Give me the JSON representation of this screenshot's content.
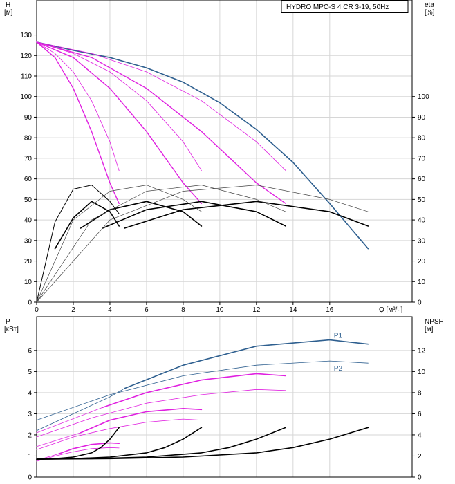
{
  "chart_data": [
    {
      "type": "line",
      "title": "HYDRO MPC-S 4 CR 3-19, 50Hz",
      "xlabel": "Q [м³/ч]",
      "ylabel": "H",
      "ylabel_unit": "[м]",
      "y2label": "eta",
      "y2label_unit": "[%]",
      "xlim": [
        0,
        20.5
      ],
      "ylim": [
        0,
        147
      ],
      "y2lim": [
        0,
        147
      ],
      "x_ticks": [
        "0",
        "2",
        "4",
        "6",
        "8",
        "10",
        "12",
        "14",
        "16"
      ],
      "y_ticks": [
        "0",
        "10",
        "20",
        "30",
        "40",
        "50",
        "60",
        "70",
        "80",
        "90",
        "100",
        "110",
        "120",
        "130"
      ],
      "y2_ticks": [
        "0",
        "10",
        "20",
        "30",
        "40",
        "50",
        "60",
        "70",
        "80",
        "90",
        "100"
      ],
      "grid": true,
      "series": [
        {
          "group": "H",
          "color": "#2e5f8f",
          "width": 1.6,
          "x": [
            0,
            2,
            4,
            6,
            8,
            10,
            12,
            14,
            16,
            18.1
          ],
          "y": [
            126.5,
            122.5,
            119,
            114,
            107,
            97,
            84,
            68,
            48,
            26
          ]
        },
        {
          "group": "H",
          "color": "#e020e0",
          "width": 1.4,
          "x": [
            0,
            1,
            2,
            3,
            4,
            4.5
          ],
          "y": [
            126.5,
            119,
            104,
            83,
            58,
            48
          ]
        },
        {
          "group": "H",
          "color": "#e020e0",
          "width": 1.4,
          "x": [
            0,
            2,
            4,
            6,
            8,
            9
          ],
          "y": [
            126.5,
            119,
            104,
            83,
            58,
            48
          ]
        },
        {
          "group": "H",
          "color": "#e020e0",
          "width": 1.4,
          "x": [
            0,
            3,
            6,
            9,
            12,
            13.6
          ],
          "y": [
            126.5,
            119,
            104,
            83,
            58,
            48
          ]
        },
        {
          "group": "H",
          "color": "#e020e0",
          "width": 0.8,
          "x": [
            0,
            1,
            2,
            3,
            4,
            4.5
          ],
          "y": [
            126.5,
            121,
            112,
            98,
            78,
            64
          ]
        },
        {
          "group": "H",
          "color": "#e020e0",
          "width": 0.8,
          "x": [
            0,
            2,
            4,
            6,
            8,
            9
          ],
          "y": [
            126.5,
            121,
            112,
            98,
            78,
            64
          ]
        },
        {
          "group": "H",
          "color": "#e020e0",
          "width": 0.8,
          "x": [
            0,
            3,
            6,
            9,
            12,
            13.6
          ],
          "y": [
            126.5,
            121,
            112,
            98,
            78,
            64
          ]
        },
        {
          "group": "eta",
          "color": "#000000",
          "width": 1.6,
          "x": [
            1,
            2,
            3,
            4,
            4.5
          ],
          "y": [
            26,
            41,
            49,
            44,
            37
          ]
        },
        {
          "group": "eta",
          "color": "#000000",
          "width": 1.6,
          "x": [
            2.4,
            4,
            6,
            8,
            9
          ],
          "y": [
            36,
            45,
            49,
            44,
            37
          ]
        },
        {
          "group": "eta",
          "color": "#000000",
          "width": 1.6,
          "x": [
            3.6,
            6,
            9,
            12,
            13.6
          ],
          "y": [
            36,
            45,
            49,
            44,
            37
          ]
        },
        {
          "group": "eta",
          "color": "#000000",
          "width": 1.6,
          "x": [
            4.8,
            8,
            12,
            16,
            18.1
          ],
          "y": [
            36,
            45,
            49,
            44,
            37
          ]
        },
        {
          "group": "eta",
          "color": "#000000",
          "width": 1.0,
          "x": [
            0,
            1,
            2,
            3,
            4,
            4.5
          ],
          "y": [
            0,
            39,
            55,
            57,
            49,
            43
          ]
        },
        {
          "group": "eta",
          "color": "#444444",
          "width": 0.7,
          "x": [
            0,
            2,
            4,
            6,
            8,
            9
          ],
          "y": [
            0,
            40,
            54,
            57,
            50,
            44
          ]
        },
        {
          "group": "eta",
          "color": "#444444",
          "width": 0.7,
          "x": [
            0,
            3,
            6,
            9,
            12,
            13.6
          ],
          "y": [
            0,
            40,
            54,
            57,
            50,
            44
          ]
        },
        {
          "group": "eta",
          "color": "#444444",
          "width": 0.7,
          "x": [
            0,
            4,
            8,
            12,
            16,
            18.1
          ],
          "y": [
            0,
            40,
            54,
            57,
            50,
            44
          ]
        }
      ]
    },
    {
      "type": "line",
      "xlabel": "",
      "ylabel": "P",
      "ylabel_unit": "[кВт]",
      "y2label": "NPSH",
      "y2label_unit": "[м]",
      "xlim": [
        0,
        20.5
      ],
      "ylim": [
        0,
        7.6
      ],
      "y2lim": [
        0,
        15.2
      ],
      "y_ticks": [
        "0",
        "1",
        "2",
        "3",
        "4",
        "5",
        "6"
      ],
      "y2_ticks": [
        "0",
        "2",
        "4",
        "6",
        "8",
        "10",
        "12"
      ],
      "grid": true,
      "series": [
        {
          "group": "P",
          "name": "P1",
          "label": "P1",
          "color": "#2e5f8f",
          "width": 1.6,
          "x": [
            4.8,
            8,
            12,
            16,
            18.1
          ],
          "y": [
            4.2,
            5.3,
            6.2,
            6.5,
            6.3
          ]
        },
        {
          "group": "P",
          "color": "#2e5f8f",
          "width": 0.8,
          "x": [
            0,
            2,
            4,
            4.8
          ],
          "y": [
            2.2,
            3.0,
            3.8,
            4.2
          ]
        },
        {
          "group": "P",
          "name": "P2",
          "label": "P2",
          "color": "#2e5f8f",
          "width": 0.8,
          "x": [
            0,
            4,
            8,
            12,
            16,
            18.1
          ],
          "y": [
            2.7,
            3.9,
            4.8,
            5.3,
            5.5,
            5.4
          ]
        },
        {
          "group": "P",
          "color": "#e020e0",
          "width": 1.6,
          "x": [
            3.6,
            6,
            9,
            12,
            13.6
          ],
          "y": [
            3.3,
            4.0,
            4.6,
            4.9,
            4.8
          ]
        },
        {
          "group": "P",
          "color": "#e020e0",
          "width": 0.8,
          "x": [
            0,
            3.6
          ],
          "y": [
            2.1,
            3.3
          ]
        },
        {
          "group": "P",
          "color": "#e020e0",
          "width": 0.8,
          "x": [
            0,
            3,
            6,
            9,
            12,
            13.6
          ],
          "y": [
            1.9,
            2.8,
            3.5,
            3.9,
            4.15,
            4.1
          ]
        },
        {
          "group": "P",
          "color": "#e020e0",
          "width": 1.6,
          "x": [
            2.4,
            4,
            6,
            8,
            9
          ],
          "y": [
            2.1,
            2.7,
            3.1,
            3.25,
            3.2
          ]
        },
        {
          "group": "P",
          "color": "#e020e0",
          "width": 0.8,
          "x": [
            0,
            2.4
          ],
          "y": [
            1.45,
            2.1
          ]
        },
        {
          "group": "P",
          "color": "#e020e0",
          "width": 0.8,
          "x": [
            0,
            2,
            4,
            6,
            8,
            9
          ],
          "y": [
            1.3,
            1.9,
            2.3,
            2.6,
            2.75,
            2.7
          ]
        },
        {
          "group": "P",
          "color": "#e020e0",
          "width": 1.6,
          "x": [
            1.2,
            2,
            3,
            4,
            4.5
          ],
          "y": [
            1.1,
            1.35,
            1.55,
            1.62,
            1.6
          ]
        },
        {
          "group": "P",
          "color": "#e020e0",
          "width": 0.8,
          "x": [
            0,
            1.2
          ],
          "y": [
            0.8,
            1.1
          ]
        },
        {
          "group": "P",
          "color": "#e020e0",
          "width": 0.8,
          "x": [
            0,
            1,
            2,
            3,
            4,
            4.5
          ],
          "y": [
            0.75,
            1.0,
            1.2,
            1.35,
            1.4,
            1.38
          ]
        },
        {
          "group": "NPSH",
          "color": "#000000",
          "width": 1.6,
          "x": [
            0,
            1,
            2,
            3,
            3.5,
            4,
            4.5
          ],
          "y": [
            1.7,
            1.75,
            1.9,
            2.3,
            2.8,
            3.6,
            4.7
          ]
        },
        {
          "group": "NPSH",
          "color": "#000000",
          "width": 1.6,
          "x": [
            0,
            2,
            4,
            6,
            7,
            8,
            9
          ],
          "y": [
            1.7,
            1.75,
            1.9,
            2.3,
            2.8,
            3.6,
            4.7
          ]
        },
        {
          "group": "NPSH",
          "color": "#000000",
          "width": 1.6,
          "x": [
            0,
            3,
            6,
            9,
            10.5,
            12,
            13.6
          ],
          "y": [
            1.7,
            1.75,
            1.9,
            2.3,
            2.8,
            3.6,
            4.7
          ]
        },
        {
          "group": "NPSH",
          "color": "#000000",
          "width": 1.6,
          "x": [
            0,
            4,
            8,
            12,
            14,
            16,
            18.1
          ],
          "y": [
            1.7,
            1.75,
            1.9,
            2.3,
            2.8,
            3.6,
            4.7
          ]
        }
      ]
    }
  ]
}
